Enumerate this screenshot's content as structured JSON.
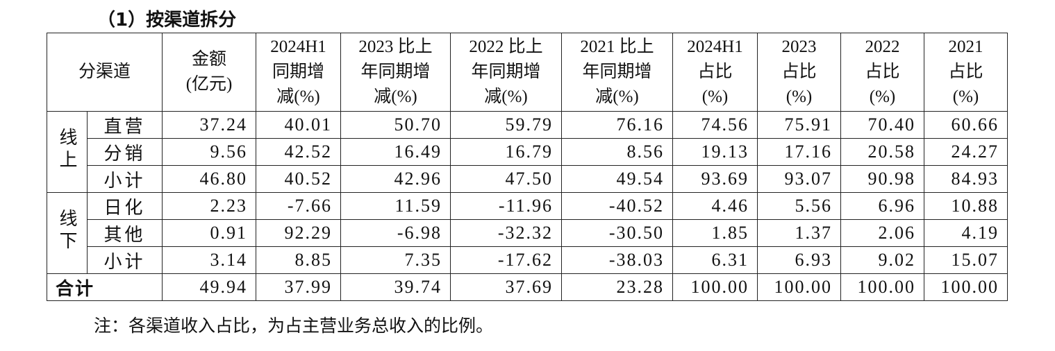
{
  "title": "（1）按渠道拆分",
  "table": {
    "header": {
      "channel": "分渠道",
      "columns": [
        [
          "金额",
          "(亿元)"
        ],
        [
          "2024H1",
          "同期增",
          "减(%)"
        ],
        [
          "2023 比上",
          "年同期增",
          "减(%)"
        ],
        [
          "2022 比上",
          "年同期增",
          "减(%)"
        ],
        [
          "2021 比上",
          "年同期增",
          "减(%)"
        ],
        [
          "2024H1",
          "占比",
          "(%)"
        ],
        [
          "2023",
          "占比",
          "(%)"
        ],
        [
          "2022",
          "占比",
          "(%)"
        ],
        [
          "2021",
          "占比",
          "(%)"
        ]
      ]
    },
    "groups": [
      {
        "label": "线上",
        "rows": [
          {
            "name": "直营",
            "cells": [
              "37.24",
              "40.01",
              "50.70",
              "59.79",
              "76.16",
              "74.56",
              "75.91",
              "70.40",
              "60.66"
            ]
          },
          {
            "name": "分销",
            "cells": [
              "9.56",
              "42.52",
              "16.49",
              "16.79",
              "8.56",
              "19.13",
              "17.16",
              "20.58",
              "24.27"
            ]
          },
          {
            "name": "小计",
            "cells": [
              "46.80",
              "40.52",
              "42.96",
              "47.50",
              "49.54",
              "93.69",
              "93.07",
              "90.98",
              "84.93"
            ]
          }
        ]
      },
      {
        "label": "线下",
        "rows": [
          {
            "name": "日化",
            "cells": [
              "2.23",
              "-7.66",
              "11.59",
              "-11.96",
              "-40.52",
              "4.46",
              "5.56",
              "6.96",
              "10.88"
            ]
          },
          {
            "name": "其他",
            "cells": [
              "0.91",
              "92.29",
              "-6.98",
              "-32.32",
              "-30.50",
              "1.85",
              "1.37",
              "2.06",
              "4.19"
            ]
          },
          {
            "name": "小计",
            "cells": [
              "3.14",
              "8.85",
              "7.35",
              "-17.62",
              "-38.03",
              "6.31",
              "6.93",
              "9.02",
              "15.07"
            ]
          }
        ]
      }
    ],
    "total": {
      "label": "合计",
      "cells": [
        "49.94",
        "37.99",
        "39.74",
        "37.69",
        "23.28",
        "100.00",
        "100.00",
        "100.00",
        "100.00"
      ]
    }
  },
  "note": "注：各渠道收入占比，为占主营业务总收入的比例。"
}
